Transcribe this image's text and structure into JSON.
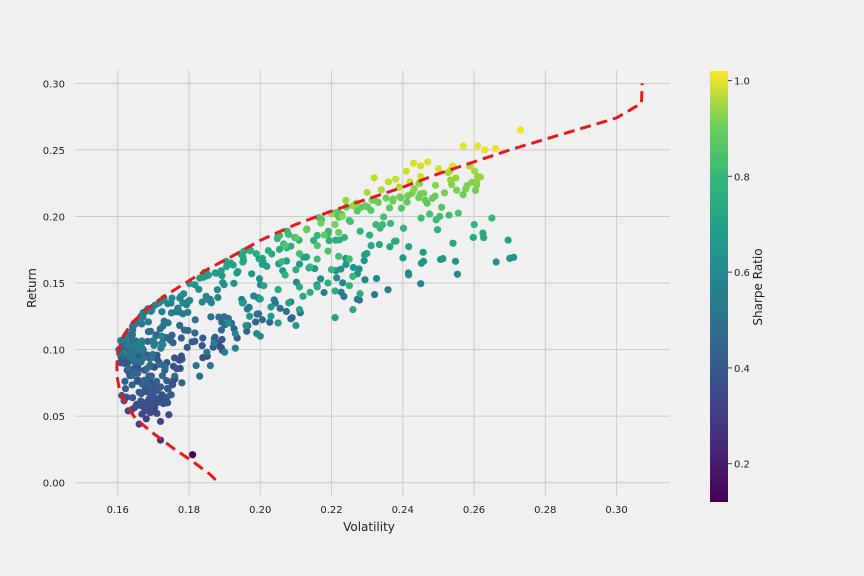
{
  "chart_data": {
    "type": "scatter",
    "title": "",
    "xlabel": "Volatility",
    "ylabel": "Return",
    "xlim": [
      0.148,
      0.315
    ],
    "ylim": [
      -0.01,
      0.31
    ],
    "x_ticks": [
      0.16,
      0.18,
      0.2,
      0.22,
      0.24,
      0.26,
      0.28,
      0.3
    ],
    "x_tick_labels": [
      "0.16",
      "0.18",
      "0.20",
      "0.22",
      "0.24",
      "0.26",
      "0.28",
      "0.30"
    ],
    "y_ticks": [
      0.0,
      0.05,
      0.1,
      0.15,
      0.2,
      0.25,
      0.3
    ],
    "y_tick_labels": [
      "0.00",
      "0.05",
      "0.10",
      "0.15",
      "0.20",
      "0.25",
      "0.30"
    ],
    "grid": true,
    "colorbar": {
      "label": "Sharpe Ratio",
      "range": [
        0.12,
        1.02
      ],
      "ticks": [
        0.2,
        0.4,
        0.6,
        0.8,
        1.0
      ],
      "tick_labels": [
        "0.2",
        "0.4",
        "0.6",
        "0.8",
        "1.0"
      ],
      "colormap": "viridis"
    },
    "points": [
      {
        "x": 0.181,
        "y": 0.021,
        "s": 0.12
      },
      {
        "x": 0.172,
        "y": 0.032,
        "s": 0.24
      },
      {
        "x": 0.166,
        "y": 0.044,
        "s": 0.3
      },
      {
        "x": 0.172,
        "y": 0.046,
        "s": 0.31
      },
      {
        "x": 0.168,
        "y": 0.048,
        "s": 0.3
      },
      {
        "x": 0.171,
        "y": 0.052,
        "s": 0.33
      },
      {
        "x": 0.164,
        "y": 0.055,
        "s": 0.34
      },
      {
        "x": 0.169,
        "y": 0.058,
        "s": 0.34
      },
      {
        "x": 0.174,
        "y": 0.06,
        "s": 0.36
      },
      {
        "x": 0.17,
        "y": 0.065,
        "s": 0.37
      },
      {
        "x": 0.175,
        "y": 0.066,
        "s": 0.38
      },
      {
        "x": 0.166,
        "y": 0.068,
        "s": 0.38
      },
      {
        "x": 0.172,
        "y": 0.072,
        "s": 0.4
      },
      {
        "x": 0.178,
        "y": 0.075,
        "s": 0.41
      },
      {
        "x": 0.183,
        "y": 0.08,
        "s": 0.44
      },
      {
        "x": 0.176,
        "y": 0.08,
        "s": 0.43
      },
      {
        "x": 0.186,
        "y": 0.088,
        "s": 0.47
      },
      {
        "x": 0.182,
        "y": 0.088,
        "s": 0.46
      },
      {
        "x": 0.19,
        "y": 0.098,
        "s": 0.51
      },
      {
        "x": 0.185,
        "y": 0.098,
        "s": 0.49
      },
      {
        "x": 0.193,
        "y": 0.101,
        "s": 0.53
      },
      {
        "x": 0.187,
        "y": 0.105,
        "s": 0.52
      },
      {
        "x": 0.2,
        "y": 0.11,
        "s": 0.56
      },
      {
        "x": 0.199,
        "y": 0.112,
        "s": 0.56
      },
      {
        "x": 0.193,
        "y": 0.112,
        "s": 0.55
      },
      {
        "x": 0.21,
        "y": 0.118,
        "s": 0.6
      },
      {
        "x": 0.205,
        "y": 0.12,
        "s": 0.6
      },
      {
        "x": 0.196,
        "y": 0.118,
        "s": 0.58
      },
      {
        "x": 0.191,
        "y": 0.12,
        "s": 0.56
      },
      {
        "x": 0.221,
        "y": 0.124,
        "s": 0.63
      },
      {
        "x": 0.203,
        "y": 0.125,
        "s": 0.61
      },
      {
        "x": 0.197,
        "y": 0.125,
        "s": 0.59
      },
      {
        "x": 0.226,
        "y": 0.13,
        "s": 0.66
      },
      {
        "x": 0.211,
        "y": 0.13,
        "s": 0.64
      },
      {
        "x": 0.203,
        "y": 0.132,
        "s": 0.62
      },
      {
        "x": 0.195,
        "y": 0.135,
        "s": 0.62
      },
      {
        "x": 0.208,
        "y": 0.135,
        "s": 0.64
      },
      {
        "x": 0.2,
        "y": 0.138,
        "s": 0.63
      },
      {
        "x": 0.212,
        "y": 0.14,
        "s": 0.66
      },
      {
        "x": 0.228,
        "y": 0.142,
        "s": 0.68
      },
      {
        "x": 0.214,
        "y": 0.143,
        "s": 0.67
      },
      {
        "x": 0.221,
        "y": 0.144,
        "s": 0.68
      },
      {
        "x": 0.205,
        "y": 0.145,
        "s": 0.66
      },
      {
        "x": 0.211,
        "y": 0.147,
        "s": 0.67
      },
      {
        "x": 0.216,
        "y": 0.147,
        "s": 0.68
      },
      {
        "x": 0.225,
        "y": 0.148,
        "s": 0.7
      },
      {
        "x": 0.201,
        "y": 0.148,
        "s": 0.66
      },
      {
        "x": 0.219,
        "y": 0.15,
        "s": 0.69
      },
      {
        "x": 0.226,
        "y": 0.155,
        "s": 0.71
      },
      {
        "x": 0.207,
        "y": 0.156,
        "s": 0.69
      },
      {
        "x": 0.21,
        "y": 0.16,
        "s": 0.7
      },
      {
        "x": 0.22,
        "y": 0.16,
        "s": 0.72
      },
      {
        "x": 0.214,
        "y": 0.162,
        "s": 0.72
      },
      {
        "x": 0.225,
        "y": 0.168,
        "s": 0.74
      },
      {
        "x": 0.206,
        "y": 0.166,
        "s": 0.72
      },
      {
        "x": 0.216,
        "y": 0.168,
        "s": 0.74
      },
      {
        "x": 0.222,
        "y": 0.17,
        "s": 0.75
      },
      {
        "x": 0.219,
        "y": 0.174,
        "s": 0.76
      },
      {
        "x": 0.211,
        "y": 0.172,
        "s": 0.75
      },
      {
        "x": 0.207,
        "y": 0.178,
        "s": 0.77
      },
      {
        "x": 0.216,
        "y": 0.178,
        "s": 0.77
      },
      {
        "x": 0.21,
        "y": 0.184,
        "s": 0.79
      },
      {
        "x": 0.218,
        "y": 0.186,
        "s": 0.8
      },
      {
        "x": 0.222,
        "y": 0.188,
        "s": 0.81
      },
      {
        "x": 0.213,
        "y": 0.19,
        "s": 0.81
      },
      {
        "x": 0.221,
        "y": 0.194,
        "s": 0.83
      },
      {
        "x": 0.217,
        "y": 0.195,
        "s": 0.82
      },
      {
        "x": 0.223,
        "y": 0.2,
        "s": 0.85
      },
      {
        "x": 0.22,
        "y": 0.202,
        "s": 0.86
      },
      {
        "x": 0.226,
        "y": 0.208,
        "s": 0.87
      },
      {
        "x": 0.227,
        "y": 0.21,
        "s": 0.88
      },
      {
        "x": 0.224,
        "y": 0.212,
        "s": 0.87
      },
      {
        "x": 0.23,
        "y": 0.218,
        "s": 0.9
      },
      {
        "x": 0.234,
        "y": 0.22,
        "s": 0.91
      },
      {
        "x": 0.239,
        "y": 0.222,
        "s": 0.92
      },
      {
        "x": 0.236,
        "y": 0.226,
        "s": 0.93
      },
      {
        "x": 0.242,
        "y": 0.226,
        "s": 0.94
      },
      {
        "x": 0.238,
        "y": 0.228,
        "s": 0.94
      },
      {
        "x": 0.232,
        "y": 0.229,
        "s": 0.93
      },
      {
        "x": 0.245,
        "y": 0.23,
        "s": 0.95
      },
      {
        "x": 0.241,
        "y": 0.234,
        "s": 0.95
      },
      {
        "x": 0.25,
        "y": 0.236,
        "s": 0.96
      },
      {
        "x": 0.245,
        "y": 0.238,
        "s": 0.96
      },
      {
        "x": 0.254,
        "y": 0.238,
        "s": 0.97
      },
      {
        "x": 0.247,
        "y": 0.241,
        "s": 0.97
      },
      {
        "x": 0.243,
        "y": 0.24,
        "s": 0.96
      },
      {
        "x": 0.257,
        "y": 0.253,
        "s": 0.98
      },
      {
        "x": 0.261,
        "y": 0.253,
        "s": 0.99
      },
      {
        "x": 0.266,
        "y": 0.251,
        "s": 0.99
      },
      {
        "x": 0.263,
        "y": 0.25,
        "s": 0.99
      },
      {
        "x": 0.273,
        "y": 0.265,
        "s": 1.0
      }
    ],
    "frontier": [
      {
        "x": 0.1875,
        "y": 0.002
      },
      {
        "x": 0.186,
        "y": 0.006
      },
      {
        "x": 0.181,
        "y": 0.016
      },
      {
        "x": 0.176,
        "y": 0.025
      },
      {
        "x": 0.17,
        "y": 0.037
      },
      {
        "x": 0.165,
        "y": 0.048
      },
      {
        "x": 0.162,
        "y": 0.06
      },
      {
        "x": 0.1605,
        "y": 0.07
      },
      {
        "x": 0.1598,
        "y": 0.08
      },
      {
        "x": 0.1598,
        "y": 0.09
      },
      {
        "x": 0.1603,
        "y": 0.1
      },
      {
        "x": 0.1615,
        "y": 0.11
      },
      {
        "x": 0.164,
        "y": 0.12
      },
      {
        "x": 0.168,
        "y": 0.13
      },
      {
        "x": 0.173,
        "y": 0.14
      },
      {
        "x": 0.179,
        "y": 0.15
      },
      {
        "x": 0.185,
        "y": 0.16
      },
      {
        "x": 0.192,
        "y": 0.17
      },
      {
        "x": 0.2,
        "y": 0.182
      },
      {
        "x": 0.21,
        "y": 0.194
      },
      {
        "x": 0.22,
        "y": 0.204
      },
      {
        "x": 0.23,
        "y": 0.213
      },
      {
        "x": 0.24,
        "y": 0.222
      },
      {
        "x": 0.25,
        "y": 0.232
      },
      {
        "x": 0.26,
        "y": 0.241
      },
      {
        "x": 0.27,
        "y": 0.25
      },
      {
        "x": 0.28,
        "y": 0.258
      },
      {
        "x": 0.29,
        "y": 0.266
      },
      {
        "x": 0.3,
        "y": 0.274
      },
      {
        "x": 0.307,
        "y": 0.285
      },
      {
        "x": 0.3072,
        "y": 0.3
      }
    ]
  }
}
